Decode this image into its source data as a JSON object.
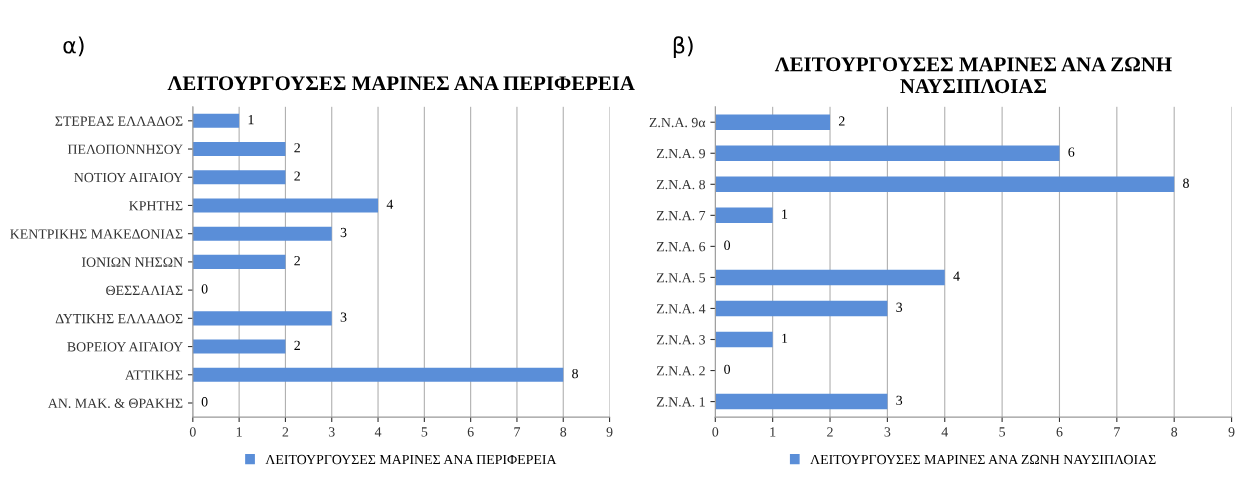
{
  "chart_data": [
    {
      "type": "bar",
      "orientation": "horizontal",
      "title": "ΛΕΙΤΟΥΡΓΟΥΣΕΣ ΜΑΡΙΝΕΣ ΑΝΑ ΠΕΡΙΦΕΡΕΙΑ",
      "annotations": [
        "α)"
      ],
      "categories": [
        "ΣΤΕΡΕΑΣ ΕΛΛΑΔΟΣ",
        "ΠΕΛΟΠΟΝΝΗΣΟΥ",
        "ΝΟΤΙΟΥ ΑΙΓΑΙΟΥ",
        "ΚΡΗΤΗΣ",
        "ΚΕΝΤΡΙΚΗΣ ΜΑΚΕΔΟΝΙΑΣ",
        "ΙΟΝΙΩΝ ΝΗΣΩΝ",
        "ΘΕΣΣΑΛΙΑΣ",
        "ΔΥΤΙΚΗΣ ΕΛΛΑΔΟΣ",
        "ΒΟΡΕΙΟΥ ΑΙΓΑΙΟΥ",
        "ΑΤΤΙΚΗΣ",
        "ΑΝ. ΜΑΚ. & ΘΡΑΚΗΣ"
      ],
      "series": [
        {
          "name": "ΛΕΙΤΟΥΡΓΟΥΣΕΣ ΜΑΡΙΝΕΣ ΑΝΑ ΠΕΡΙΦΕΡΕΙΑ",
          "color": "#5a8ed8",
          "values": [
            1,
            2,
            2,
            4,
            3,
            2,
            0,
            3,
            2,
            8,
            0
          ]
        }
      ],
      "xlim": [
        0,
        9
      ],
      "xticks": [
        0,
        1,
        2,
        3,
        4,
        5,
        6,
        7,
        8,
        9
      ],
      "grid": "x",
      "legend": "bottom",
      "data_labels": true
    },
    {
      "type": "bar",
      "orientation": "horizontal",
      "title": "ΛΕΙΤΟΥΡΓΟΥΣΕΣ ΜΑΡΙΝΕΣ ΑΝΑ ΖΩΝΗ ΝΑΥΣΙΠΛΟΙΑΣ",
      "annotations": [
        "β)"
      ],
      "categories": [
        "Ζ.Ν.Α. 9α",
        "Ζ.Ν.Α. 9",
        "Ζ.Ν.Α. 8",
        "Ζ.Ν.Α. 7",
        "Ζ.Ν.Α. 6",
        "Ζ.Ν.Α. 5",
        "Ζ.Ν.Α. 4",
        "Ζ.Ν.Α. 3",
        "Ζ.Ν.Α. 2",
        "Ζ.Ν.Α. 1"
      ],
      "series": [
        {
          "name": "ΛΕΙΤΟΥΡΓΟΥΣΕΣ ΜΑΡΙΝΕΣ ΑΝΑ ΖΩΝΗ ΝΑΥΣΙΠΛΟΙΑΣ",
          "color": "#5a8ed8",
          "values": [
            2,
            6,
            8,
            1,
            0,
            4,
            3,
            1,
            0,
            3
          ]
        }
      ],
      "xlim": [
        0,
        9
      ],
      "xticks": [
        0,
        1,
        2,
        3,
        4,
        5,
        6,
        7,
        8,
        9
      ],
      "grid": "x",
      "legend": "bottom",
      "data_labels": true
    }
  ]
}
